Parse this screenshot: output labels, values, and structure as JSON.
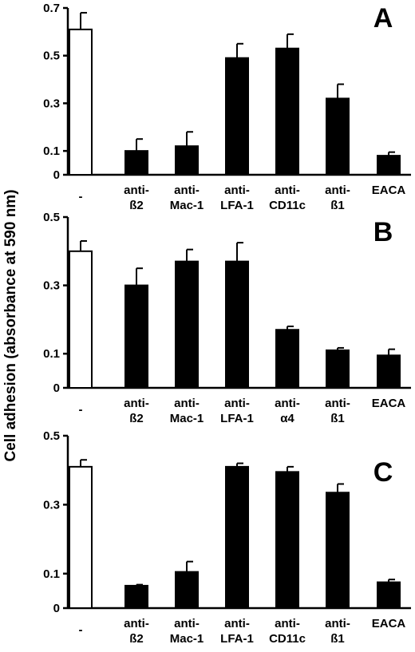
{
  "ylabel": "Cell adhesion (absorbance at 590 nm)",
  "chart_data": [
    {
      "type": "bar",
      "panel": "A",
      "categories": [
        [
          "-"
        ],
        [
          "anti-",
          "ß2"
        ],
        [
          "anti-",
          "Mac-1"
        ],
        [
          "anti-",
          "LFA-1"
        ],
        [
          "anti-",
          "CD11c"
        ],
        [
          "anti-",
          "ß1"
        ],
        [
          "EACA"
        ]
      ],
      "values": [
        0.61,
        0.1,
        0.12,
        0.49,
        0.53,
        0.32,
        0.08
      ],
      "errors": [
        0.07,
        0.05,
        0.06,
        0.06,
        0.06,
        0.06,
        0.015
      ],
      "fills": [
        "white",
        "black",
        "black",
        "black",
        "black",
        "black",
        "black"
      ],
      "yticks": [
        "0",
        "0.1",
        "0.3",
        "0.5",
        "0.7"
      ],
      "ylim": [
        0,
        0.7
      ]
    },
    {
      "type": "bar",
      "panel": "B",
      "categories": [
        [
          "-"
        ],
        [
          "anti-",
          "ß2"
        ],
        [
          "anti-",
          "Mac-1"
        ],
        [
          "anti-",
          "LFA-1"
        ],
        [
          "anti-",
          "α4"
        ],
        [
          "anti-",
          "ß1"
        ],
        [
          "EACA"
        ]
      ],
      "values": [
        0.4,
        0.3,
        0.37,
        0.37,
        0.17,
        0.11,
        0.095
      ],
      "errors": [
        0.03,
        0.05,
        0.035,
        0.055,
        0.01,
        0.007,
        0.018
      ],
      "fills": [
        "white",
        "black",
        "black",
        "black",
        "black",
        "black",
        "black"
      ],
      "yticks": [
        "0",
        "0.1",
        "0.3",
        "0.5"
      ],
      "ylim": [
        0,
        0.5
      ]
    },
    {
      "type": "bar",
      "panel": "C",
      "categories": [
        [
          "-"
        ],
        [
          "anti-",
          "ß2"
        ],
        [
          "anti-",
          "Mac-1"
        ],
        [
          "anti-",
          "LFA-1"
        ],
        [
          "anti-",
          "CD11c"
        ],
        [
          "anti-",
          "ß1"
        ],
        [
          "EACA"
        ]
      ],
      "values": [
        0.41,
        0.065,
        0.105,
        0.41,
        0.395,
        0.335,
        0.075
      ],
      "errors": [
        0.02,
        0.003,
        0.03,
        0.01,
        0.015,
        0.025,
        0.008
      ],
      "fills": [
        "white",
        "black",
        "black",
        "black",
        "black",
        "black",
        "black"
      ],
      "yticks": [
        "0",
        "0.1",
        "0.3",
        "0.5"
      ],
      "ylim": [
        0,
        0.5
      ]
    }
  ]
}
